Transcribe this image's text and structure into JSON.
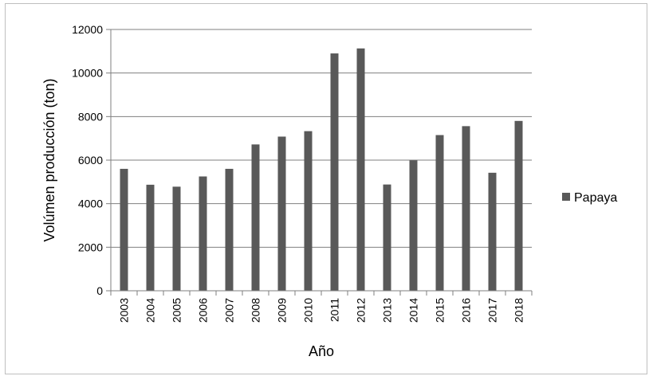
{
  "chart_data": {
    "type": "bar",
    "title": "",
    "xlabel": "Año",
    "ylabel": "Volúmen producción (ton)",
    "categories": [
      "2003",
      "2004",
      "2005",
      "2006",
      "2007",
      "2008",
      "2009",
      "2010",
      "2011",
      "2012",
      "2013",
      "2014",
      "2015",
      "2016",
      "2017",
      "2018"
    ],
    "series": [
      {
        "name": "Papaya",
        "color": "#595959",
        "values": [
          5600,
          4870,
          4780,
          5250,
          5600,
          6720,
          7080,
          7330,
          10900,
          11130,
          4880,
          5990,
          7150,
          7560,
          5420,
          7800
        ]
      }
    ],
    "ylim": [
      0,
      12000
    ],
    "yticks": [
      0,
      2000,
      4000,
      6000,
      8000,
      10000,
      12000
    ],
    "grid": true,
    "legend_position": "right"
  }
}
